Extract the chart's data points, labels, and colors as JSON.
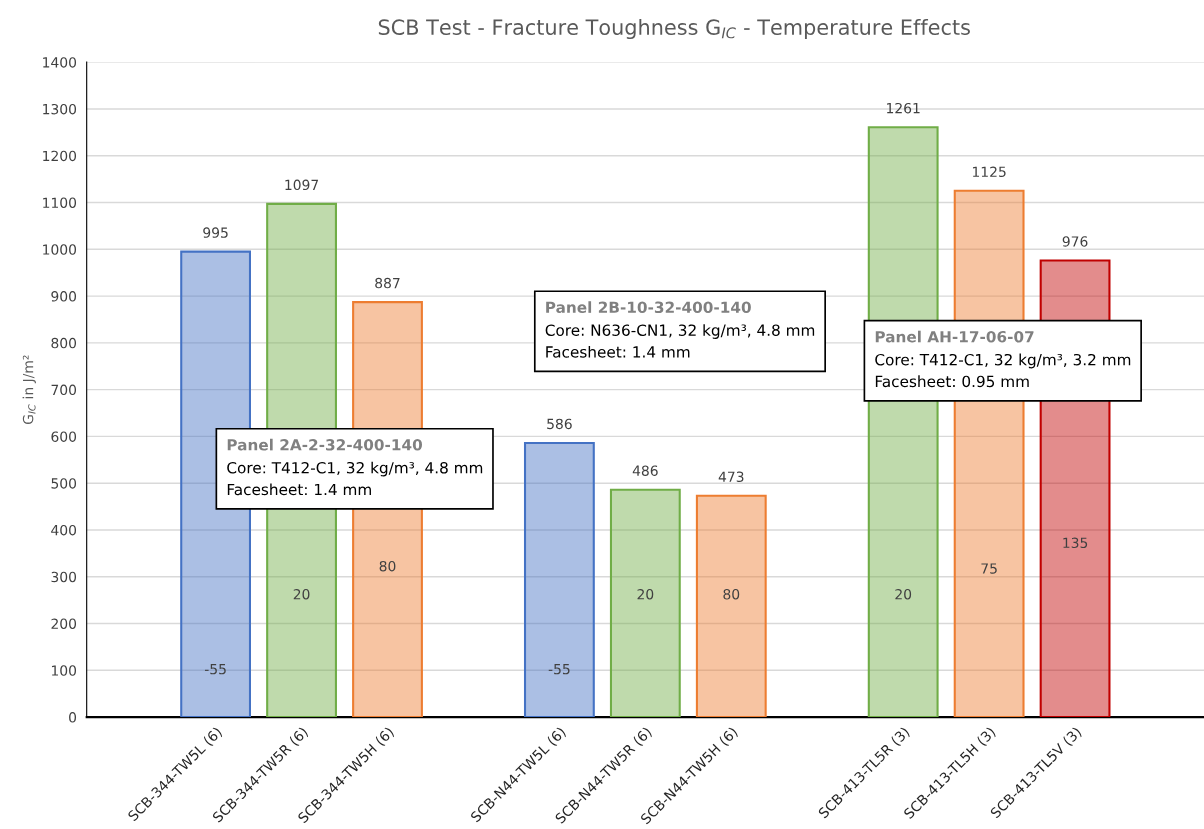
{
  "chart_data": {
    "type": "bar",
    "title": "SCB Test - Fracture Toughness G$_{IC}$ - Temperature Effects",
    "ylabel": "G$_{IC}$ in J/m²",
    "categories": [
      null,
      "SCB-344-TW5L (6)",
      "SCB-344-TW5R (6)",
      "SCB-344-TW5H (6)",
      null,
      "SCB-N44-TW5L (6)",
      "SCB-N44-TW5R (6)",
      "SCB-N44-TW5H (6)",
      null,
      "SCB-413-TL5R (3)",
      "SCB-413-TL5H (3)",
      "SCB-413-TL5V (3)",
      null
    ],
    "values": [
      null,
      995,
      1097,
      887,
      null,
      586,
      486,
      473,
      null,
      1261,
      1125,
      976,
      null
    ],
    "colors": [
      "#4472c4",
      "#4472c4",
      "#70ad47",
      "#ed7d31",
      "#4472c4",
      "#4472c4",
      "#70ad47",
      "#ed7d31",
      "#4472c4",
      "#70ad47",
      "#ed7d31",
      "#c00000",
      "#4472c4"
    ],
    "ylim": [
      0,
      1400
    ],
    "yticks": [
      0,
      100,
      200,
      300,
      400,
      500,
      600,
      700,
      800,
      900,
      1000,
      1100,
      1200,
      1300,
      1400
    ],
    "grid": "y",
    "data_labels": true,
    "annotations": [
      "-55",
      "20",
      "80",
      "-55",
      "20",
      "80",
      "20",
      "75",
      "135",
      "Panel 2A-2-32-400-140",
      "Core: T412-C1, 32 kg/m³, 4.8 mm\nFacesheet: 1.4 mm",
      "Panel 2B-10-32-400-140",
      "Core: N636-CN1, 32 kg/m³, 4.8 mm\nFacesheet: 1.4 mm",
      "Panel AH-17-06-07",
      "Core: T412-C1, 32 kg/m³, 3.2 mm\nFacesheet: 0.95 mm"
    ]
  }
}
